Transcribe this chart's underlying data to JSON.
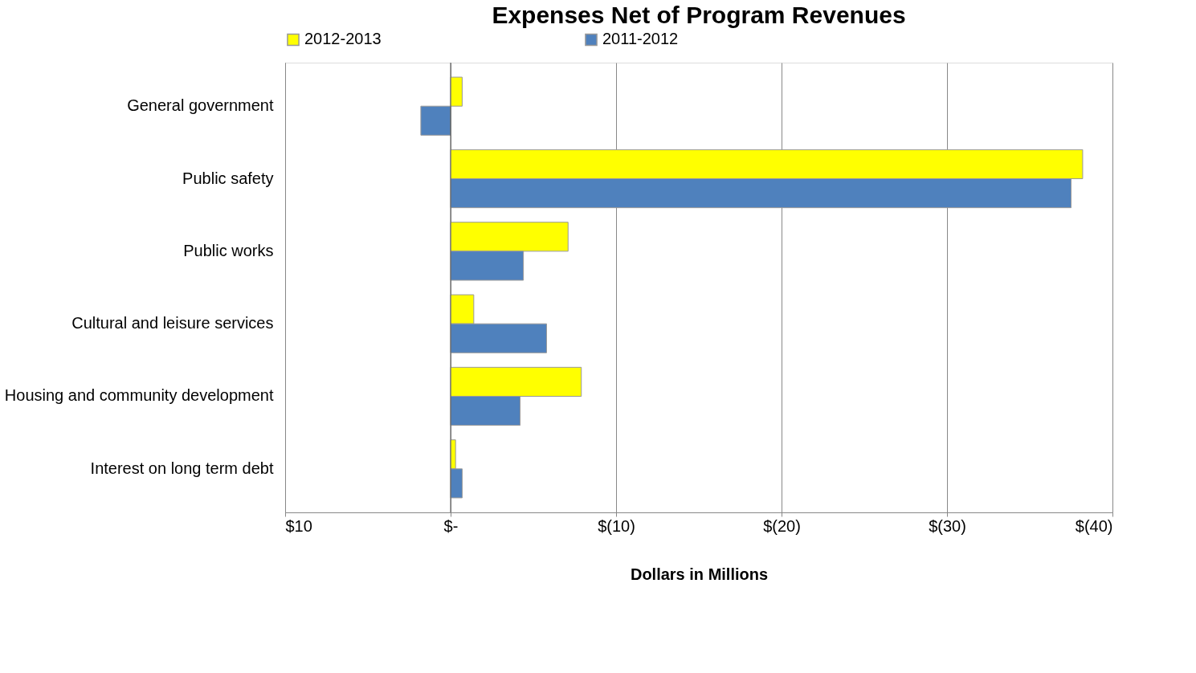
{
  "chart_data": {
    "type": "bar",
    "orientation": "horizontal",
    "title": "Expenses Net of Program Revenues",
    "xlabel": "Dollars in Millions",
    "categories": [
      "General government",
      "Public safety",
      "Public works",
      "Cultural and leisure services",
      "Housing and community development",
      "Interest on long term debt"
    ],
    "series": [
      {
        "name": "2012-2013",
        "color": "#ffff00",
        "values": [
          -0.7,
          -38.2,
          -7.1,
          -1.4,
          -7.9,
          -0.3
        ]
      },
      {
        "name": "2011-2012",
        "color": "#4f81bd",
        "values": [
          1.8,
          -37.5,
          -4.4,
          -5.8,
          -4.2,
          -0.7
        ]
      }
    ],
    "xlim": [
      10,
      -40
    ],
    "xticks": [
      {
        "value": 10,
        "label": "$10"
      },
      {
        "value": 0,
        "label": "$-"
      },
      {
        "value": -10,
        "label": "$(10)"
      },
      {
        "value": -20,
        "label": "$(20)"
      },
      {
        "value": -30,
        "label": "$(30)"
      },
      {
        "value": -40,
        "label": "$(40)"
      }
    ],
    "grid": "x",
    "legend": "top"
  }
}
